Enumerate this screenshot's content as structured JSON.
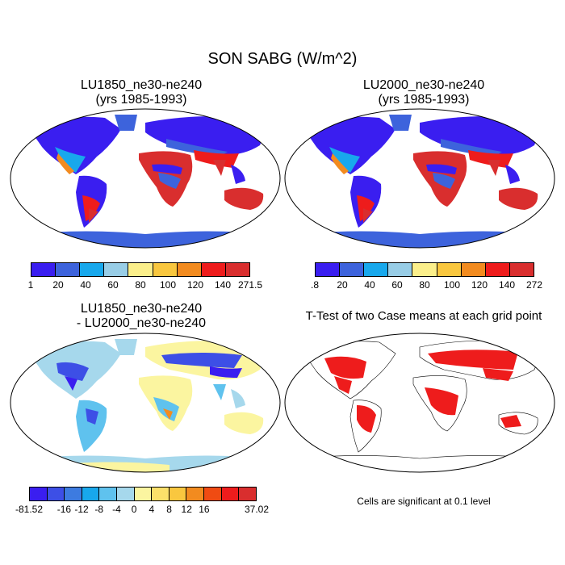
{
  "title": "SON SABG (W/m^2)",
  "panels": [
    {
      "title_line1": "LU1850_ne30-ne240",
      "title_line2": "(yrs 1985-1993)"
    },
    {
      "title_line1": "LU2000_ne30-ne240",
      "title_line2": "(yrs 1985-1993)"
    },
    {
      "title_line1": "LU1850_ne30-ne240",
      "title_line2": "- LU2000_ne30-ne240"
    },
    {
      "title_line1": "T-Test of two Case means at each grid point",
      "title_line2": ""
    }
  ],
  "colorbars": {
    "left": {
      "colors": [
        "#3a1ef0",
        "#3d63dc",
        "#18a8ec",
        "#98cde6",
        "#fbef8b",
        "#f9c73f",
        "#f28b1f",
        "#ee1c1c",
        "#d92e2e"
      ],
      "labels": [
        "1",
        "20",
        "40",
        "60",
        "80",
        "100",
        "120",
        "140",
        "271.5"
      ]
    },
    "right": {
      "colors": [
        "#3a1ef0",
        "#3d63dc",
        "#18a8ec",
        "#98cde6",
        "#fbef8b",
        "#f9c73f",
        "#f28b1f",
        "#ee1c1c",
        "#d92e2e"
      ],
      "labels": [
        ".8",
        "20",
        "40",
        "60",
        "80",
        "100",
        "120",
        "140",
        "272"
      ]
    },
    "diff": {
      "colors": [
        "#3a1ef0",
        "#3d4fe6",
        "#3d7be0",
        "#18a8ec",
        "#5fc2ee",
        "#a6d8ec",
        "#fbf5a0",
        "#fbe06a",
        "#f9c73f",
        "#f28b1f",
        "#f04b12",
        "#ee1c1c",
        "#d92e2e"
      ],
      "labels": [
        "-81.52",
        "-16",
        "-12",
        "-8",
        "-4",
        "0",
        "4",
        "8",
        "12",
        "16",
        "37.02"
      ]
    }
  },
  "significance_note": "Cells are significant at 0.1 level"
}
